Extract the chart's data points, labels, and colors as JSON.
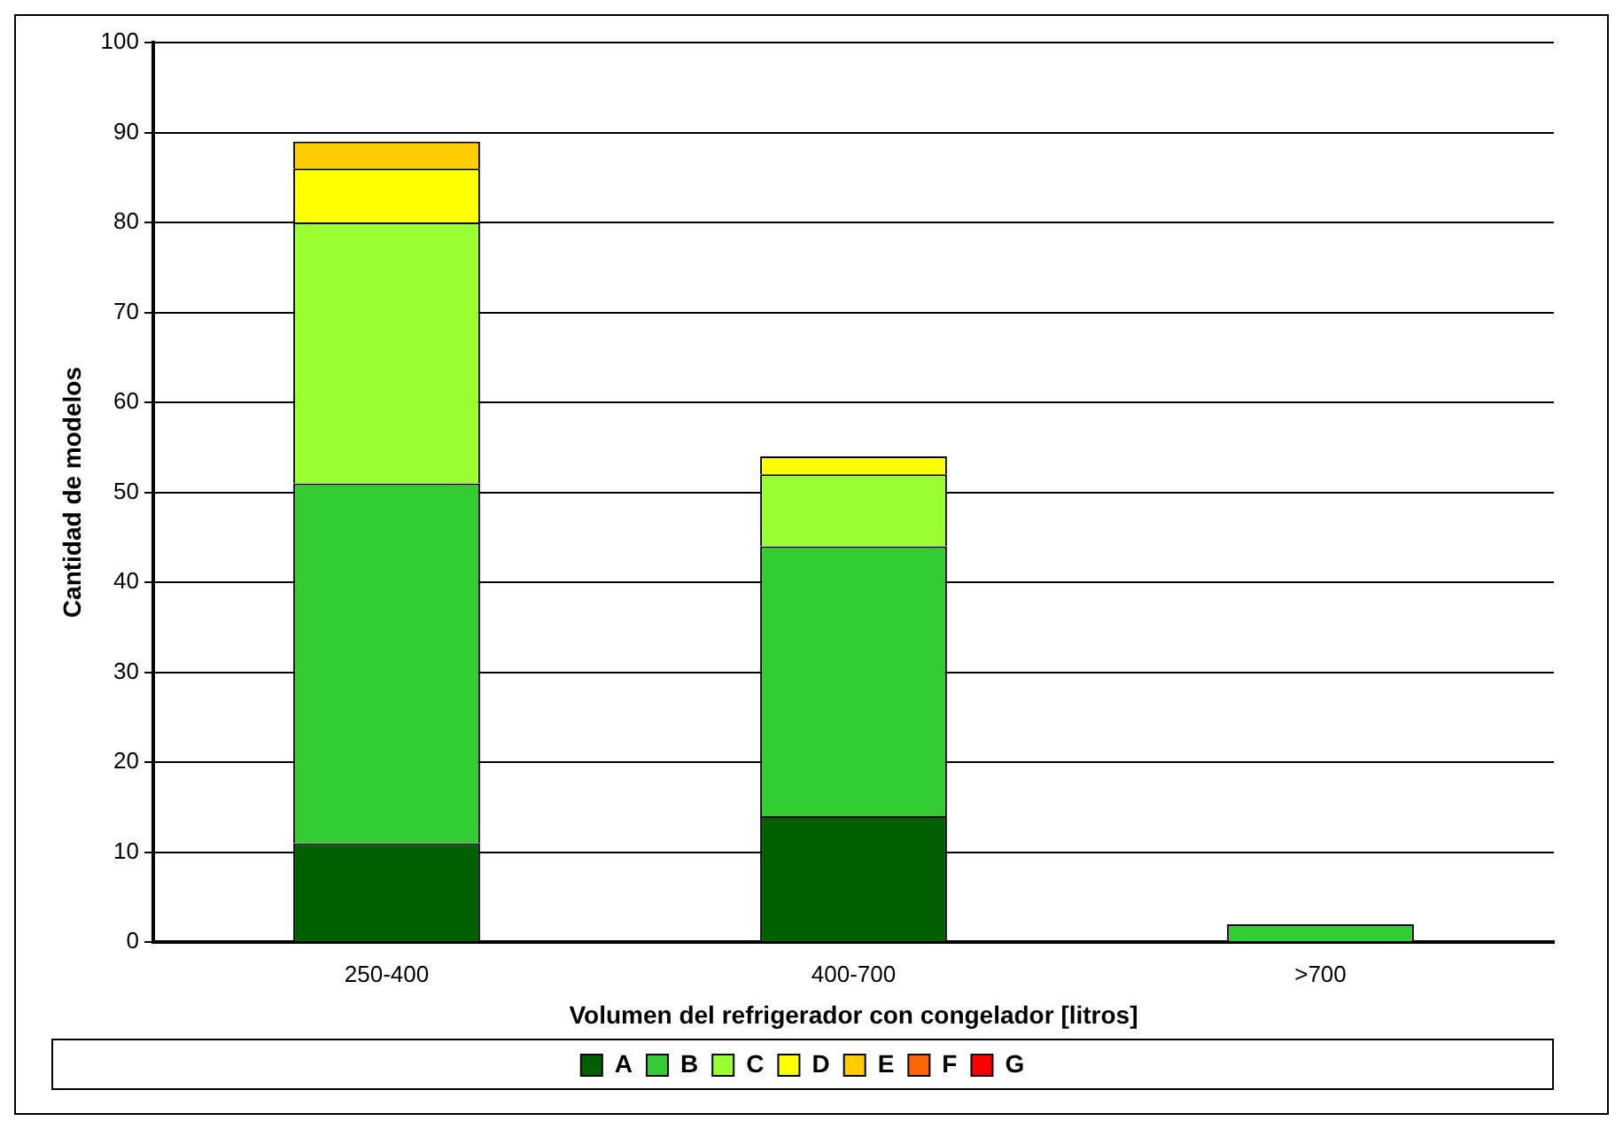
{
  "chart_data": {
    "type": "bar",
    "stacked": true,
    "xlabel": "Volumen del refrigerador con congelador [litros]",
    "ylabel": "Cantidad de modelos",
    "categories": [
      "250-400",
      "400-700",
      ">700"
    ],
    "series": [
      {
        "name": "A",
        "color": "#006000",
        "values": [
          11,
          14,
          0
        ]
      },
      {
        "name": "B",
        "color": "#33cc33",
        "values": [
          40,
          30,
          2
        ]
      },
      {
        "name": "C",
        "color": "#99ff33",
        "values": [
          29,
          8,
          0
        ]
      },
      {
        "name": "D",
        "color": "#ffff00",
        "values": [
          6,
          2,
          0
        ]
      },
      {
        "name": "E",
        "color": "#ffcc00",
        "values": [
          3,
          0,
          0
        ]
      },
      {
        "name": "F",
        "color": "#ff6600",
        "values": [
          0,
          0,
          0
        ]
      },
      {
        "name": "G",
        "color": "#ff0000",
        "values": [
          0,
          0,
          0
        ]
      }
    ],
    "ylim": [
      0,
      100
    ],
    "yticks": [
      0,
      10,
      20,
      30,
      40,
      50,
      60,
      70,
      80,
      90,
      100
    ],
    "grid": "y",
    "legend": "bottom"
  }
}
